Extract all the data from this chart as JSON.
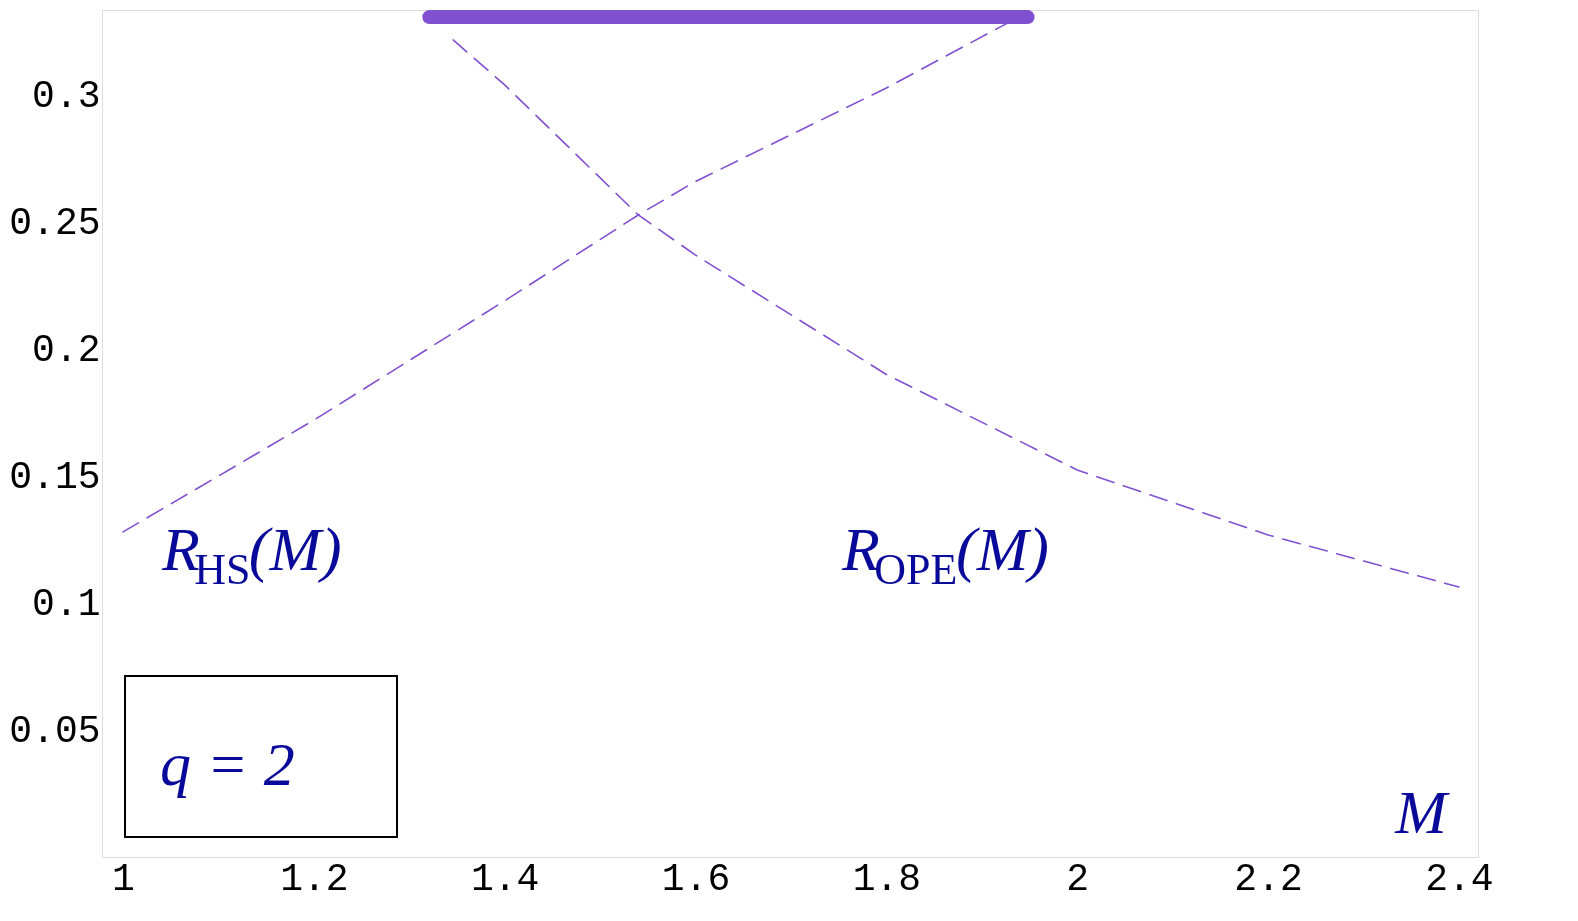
{
  "chart_data": {
    "type": "line",
    "xlabel": "M",
    "xlim": [
      0.978,
      2.42
    ],
    "ylim": [
      0,
      0.3335
    ],
    "xticks": [
      1,
      1.2,
      1.4,
      1.6,
      1.8,
      2,
      2.2,
      2.4
    ],
    "yticks": [
      0.05,
      0.1,
      0.15,
      0.2,
      0.25,
      0.3
    ],
    "grid": false,
    "marker": "none",
    "series": [
      {
        "x": [
          1,
          1.2,
          1.4,
          1.54,
          1.6,
          1.8,
          1.95
        ],
        "values": [
          0.128,
          0.172,
          0.219,
          0.2528,
          0.266,
          0.3028,
          0.333
        ],
        "color": "#8050d0",
        "line_style": "dashed"
      },
      {
        "x": [
          1.346,
          1.4,
          1.54,
          1.6,
          1.8,
          2.0,
          2.2,
          2.4
        ],
        "values": [
          0.3217,
          0.304,
          0.2528,
          0.237,
          0.19,
          0.1524,
          0.1268,
          0.1063
        ],
        "color": "#8050d0",
        "line_style": "dashed"
      },
      {
        "x": [
          1.321,
          1.948
        ],
        "values": [
          0.3307,
          0.3307
        ],
        "color": "#8050d0",
        "line_style": "solid"
      }
    ],
    "annotations": [
      "R$_{HS}$(M)",
      "R$_{OPE}$(M)",
      "q = 2"
    ]
  }
}
